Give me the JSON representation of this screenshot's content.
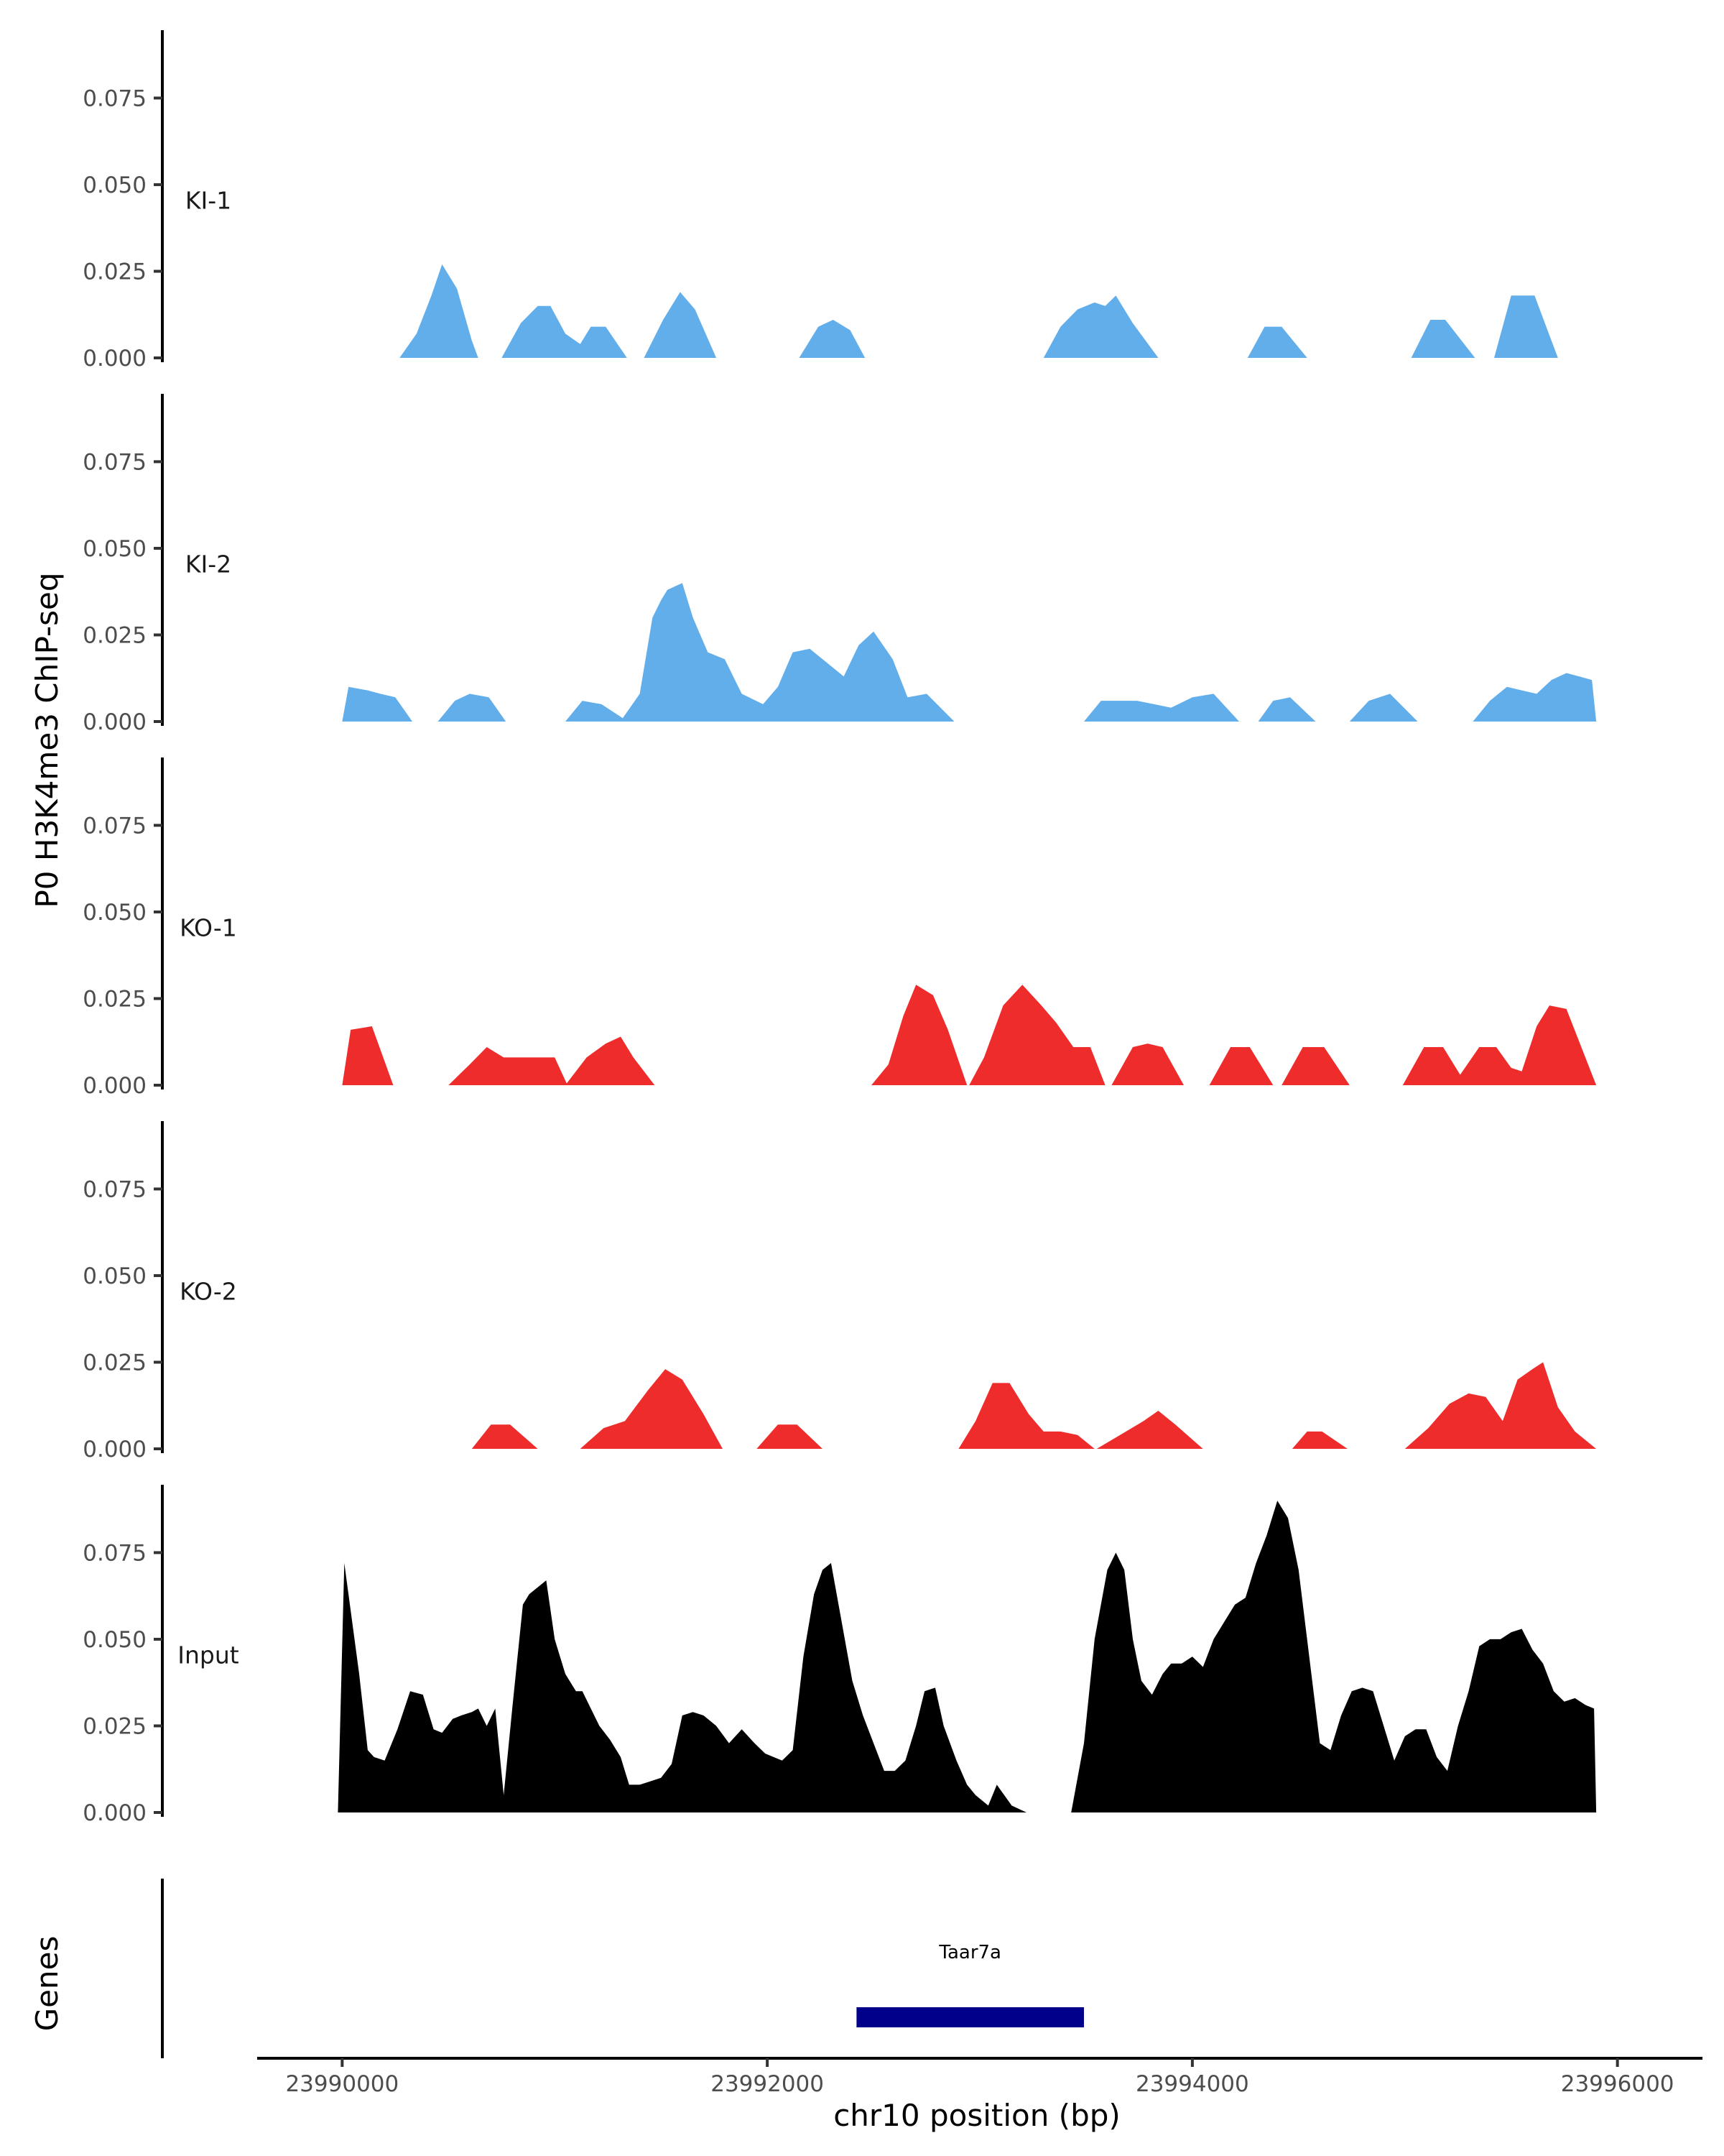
{
  "chart_data": {
    "type": "area",
    "subtype": "genome-track",
    "ylabel": "P0 H3K4me3 ChIP-seq",
    "xlabel": "chr10 position (bp)",
    "xlim": [
      23989600,
      23996400
    ],
    "ylim": [
      0,
      0.095
    ],
    "yticks": [
      0.0,
      0.025,
      0.05,
      0.075
    ],
    "ytick_labels": [
      "0.000",
      "0.025",
      "0.050",
      "0.075"
    ],
    "xticks": [
      23990000,
      23992000,
      23994000,
      23996000
    ],
    "xtick_labels": [
      "23990000",
      "23992000",
      "23994000",
      "23996000"
    ],
    "colors": {
      "KI": "#62aeeb",
      "KO": "#ee2c2c",
      "Input": "#000000",
      "gene": "#00008b"
    },
    "tracks": [
      {
        "name": "KI-1",
        "label": "KI-1",
        "color": "#62aeeb",
        "segments": [
          {
            "x": [
              23990270,
              23990350,
              23990420,
              23990470,
              23990540,
              23990610,
              23990640
            ],
            "y": [
              0,
              0.007,
              0.018,
              0.027,
              0.02,
              0.005,
              0
            ]
          },
          {
            "x": [
              23990750,
              23990840,
              23990920,
              23990980,
              23991050,
              23991120,
              23991170,
              23991240,
              23991340
            ],
            "y": [
              0,
              0.01,
              0.015,
              0.015,
              0.007,
              0.004,
              0.009,
              0.009,
              0
            ]
          },
          {
            "x": [
              23991420,
              23991510,
              23991590,
              23991660,
              23991760
            ],
            "y": [
              0,
              0.011,
              0.019,
              0.014,
              0
            ]
          },
          {
            "x": [
              23992150,
              23992240,
              23992310,
              23992390,
              23992460
            ],
            "y": [
              0,
              0.009,
              0.011,
              0.008,
              0
            ]
          },
          {
            "x": [
              23993300,
              23993380,
              23993460,
              23993540,
              23993590,
              23993640,
              23993720,
              23993840
            ],
            "y": [
              0,
              0.009,
              0.014,
              0.016,
              0.015,
              0.018,
              0.01,
              0
            ]
          },
          {
            "x": [
              23994260,
              23994340,
              23994420,
              23994540
            ],
            "y": [
              0,
              0.009,
              0.009,
              0
            ]
          },
          {
            "x": [
              23995030,
              23995120,
              23995190,
              23995330
            ],
            "y": [
              0,
              0.011,
              0.011,
              0
            ]
          },
          {
            "x": [
              23995420,
              23995500,
              23995610,
              23995720
            ],
            "y": [
              0,
              0.018,
              0.018,
              0
            ]
          }
        ]
      },
      {
        "name": "KI-2",
        "label": "KI-2",
        "color": "#62aeeb",
        "segments": [
          {
            "x": [
              23990000,
              23990030,
              23990120,
              23990180,
              23990250,
              23990330
            ],
            "y": [
              0,
              0.01,
              0.009,
              0.008,
              0.007,
              0
            ]
          },
          {
            "x": [
              23990450,
              23990530,
              23990600,
              23990690,
              23990770
            ],
            "y": [
              0,
              0.006,
              0.008,
              0.007,
              0
            ]
          },
          {
            "x": [
              23991050,
              23991130,
              23991220,
              23991320,
              23991400,
              23991460,
              23991500,
              23991530,
              23991600,
              23991650,
              23991720,
              23991800,
              23991880,
              23991980,
              23992050,
              23992120,
              23992200,
              23992280,
              23992360,
              23992430,
              23992500,
              23992590,
              23992660,
              23992750,
              23992880
            ],
            "y": [
              0,
              0.006,
              0.005,
              0.001,
              0.008,
              0.03,
              0.035,
              0.038,
              0.04,
              0.03,
              0.02,
              0.018,
              0.008,
              0.005,
              0.01,
              0.02,
              0.021,
              0.017,
              0.013,
              0.022,
              0.026,
              0.018,
              0.007,
              0.008,
              0
            ]
          },
          {
            "x": [
              23993490,
              23993570,
              23993660,
              23993740,
              23993820,
              23993900,
              23994000,
              23994100,
              23994220
            ],
            "y": [
              0,
              0.006,
              0.006,
              0.006,
              0.005,
              0.004,
              0.007,
              0.008,
              0
            ]
          },
          {
            "x": [
              23994310,
              23994380,
              23994460,
              23994580
            ],
            "y": [
              0,
              0.006,
              0.007,
              0
            ]
          },
          {
            "x": [
              23994740,
              23994830,
              23994930,
              23995060
            ],
            "y": [
              0,
              0.006,
              0.008,
              0
            ]
          },
          {
            "x": [
              23995320,
              23995400,
              23995480,
              23995550,
              23995620,
              23995690,
              23995760,
              23995820,
              23995880,
              23995900
            ],
            "y": [
              0,
              0.006,
              0.01,
              0.009,
              0.008,
              0.012,
              0.014,
              0.013,
              0.012,
              0
            ]
          }
        ]
      },
      {
        "name": "KO-1",
        "label": "KO-1",
        "color": "#ee2c2c",
        "segments": [
          {
            "x": [
              23990000,
              23990040,
              23990140,
              23990240
            ],
            "y": [
              0,
              0.016,
              0.017,
              0
            ]
          },
          {
            "x": [
              23990500,
              23990600,
              23990680,
              23990760,
              23990880,
              23991000,
              23991060
            ],
            "y": [
              0,
              0.006,
              0.011,
              0.008,
              0.008,
              0.008,
              0
            ]
          },
          {
            "x": [
              23991050,
              23991150,
              23991240,
              23991310,
              23991370,
              23991470
            ],
            "y": [
              0,
              0.008,
              0.012,
              0.014,
              0.008,
              0
            ]
          },
          {
            "x": [
              23992490,
              23992570,
              23992640,
              23992700,
              23992780,
              23992850,
              23992940
            ],
            "y": [
              0,
              0.006,
              0.02,
              0.029,
              0.026,
              0.016,
              0
            ]
          },
          {
            "x": [
              23992950,
              23993020,
              23993110,
              23993200,
              23993290,
              23993360,
              23993440,
              23993520,
              23993590
            ],
            "y": [
              0,
              0.008,
              0.023,
              0.029,
              0.023,
              0.018,
              0.011,
              0.011,
              0
            ]
          },
          {
            "x": [
              23993620,
              23993720,
              23993790,
              23993860,
              23993960
            ],
            "y": [
              0,
              0.011,
              0.012,
              0.011,
              0
            ]
          },
          {
            "x": [
              23994080,
              23994180,
              23994270,
              23994380
            ],
            "y": [
              0,
              0.011,
              0.011,
              0
            ]
          },
          {
            "x": [
              23994420,
              23994520,
              23994620,
              23994740
            ],
            "y": [
              0,
              0.011,
              0.011,
              0
            ]
          },
          {
            "x": [
              23994990,
              23995090,
              23995180,
              23995260,
              23995350,
              23995430,
              23995500,
              23995550
            ],
            "y": [
              0,
              0.011,
              0.011,
              0.003,
              0.011,
              0.011,
              0.005,
              0.004
            ]
          },
          {
            "x": [
              23995550,
              23995620,
              23995680,
              23995760,
              23995900
            ],
            "y": [
              0.004,
              0.017,
              0.023,
              0.022,
              0
            ]
          }
        ]
      },
      {
        "name": "KO-2",
        "label": "KO-2",
        "color": "#ee2c2c",
        "segments": [
          {
            "x": [
              23990610,
              23990700,
              23990790,
              23990920
            ],
            "y": [
              0,
              0.007,
              0.007,
              0
            ]
          },
          {
            "x": [
              23991120,
              23991230,
              23991330,
              23991440,
              23991520,
              23991600,
              23991700,
              23991790
            ],
            "y": [
              0,
              0.006,
              0.008,
              0.017,
              0.023,
              0.02,
              0.01,
              0
            ]
          },
          {
            "x": [
              23991950,
              23992050,
              23992140,
              23992260
            ],
            "y": [
              0,
              0.007,
              0.007,
              0
            ]
          },
          {
            "x": [
              23992900,
              23992980,
              23993060,
              23993140,
              23993230,
              23993300,
              23993380,
              23993460,
              23993540
            ],
            "y": [
              0,
              0.008,
              0.019,
              0.019,
              0.01,
              0.005,
              0.005,
              0.004,
              0
            ]
          },
          {
            "x": [
              23993550,
              23993660,
              23993770,
              23993840,
              23993920,
              23994050
            ],
            "y": [
              0,
              0.004,
              0.008,
              0.011,
              0.007,
              0
            ]
          },
          {
            "x": [
              23994470,
              23994540,
              23994610,
              23994730
            ],
            "y": [
              0,
              0.005,
              0.005,
              0
            ]
          },
          {
            "x": [
              23995000,
              23995110,
              23995210,
              23995300,
              23995380,
              23995460,
              23995530,
              23995600,
              23995650,
              23995720,
              23995800,
              23995900
            ],
            "y": [
              0,
              0.006,
              0.013,
              0.016,
              0.015,
              0.008,
              0.02,
              0.023,
              0.025,
              0.012,
              0.005,
              0
            ]
          }
        ]
      },
      {
        "name": "Input",
        "label": "Input",
        "color": "#000000",
        "segments": [
          {
            "x": [
              23989980,
              23990010,
              23990080,
              23990120,
              23990150,
              23990200,
              23990260,
              23990320,
              23990380,
              23990430,
              23990470,
              23990520,
              23990560,
              23990610,
              23990640,
              23990680,
              23990720,
              23990760,
              23990800,
              23990850,
              23990880,
              23990920,
              23990960,
              23991000,
              23991050,
              23991100,
              23991130,
              23991170,
              23991210,
              23991260,
              23991310,
              23991350,
              23991400,
              23991450,
              23991500,
              23991550,
              23991600,
              23991650,
              23991700,
              23991760,
              23991820,
              23991880,
              23991940,
              23991990,
              23992030,
              23992070,
              23992120,
              23992170,
              23992220,
              23992260,
              23992300,
              23992350,
              23992400,
              23992450,
              23992500,
              23992550,
              23992600,
              23992650,
              23992700,
              23992740,
              23992790,
              23992830,
              23992890,
              23992940,
              23992980,
              23993040,
              23993080,
              23993150,
              23993220
            ],
            "y": [
              0,
              0.072,
              0.04,
              0.018,
              0.016,
              0.015,
              0.024,
              0.035,
              0.034,
              0.024,
              0.023,
              0.027,
              0.028,
              0.029,
              0.03,
              0.025,
              0.03,
              0.005,
              0.03,
              0.06,
              0.063,
              0.065,
              0.067,
              0.05,
              0.04,
              0.035,
              0.035,
              0.03,
              0.025,
              0.021,
              0.016,
              0.008,
              0.008,
              0.009,
              0.01,
              0.014,
              0.028,
              0.029,
              0.028,
              0.025,
              0.02,
              0.024,
              0.02,
              0.017,
              0.016,
              0.015,
              0.018,
              0.045,
              0.063,
              0.07,
              0.072,
              0.055,
              0.038,
              0.028,
              0.02,
              0.012,
              0.012,
              0.015,
              0.025,
              0.035,
              0.036,
              0.025,
              0.015,
              0.008,
              0.005,
              0.002,
              0.008,
              0.002,
              0
            ]
          },
          {
            "x": [
              23993430,
              23993490,
              23993540,
              23993600,
              23993640,
              23993680,
              23993720,
              23993760,
              23993810,
              23993860,
              23993900,
              23993950,
              23994000,
              23994050,
              23994100,
              23994150,
              23994200,
              23994250,
              23994300,
              23994350,
              23994400,
              23994450,
              23994500,
              23994550,
              23994600,
              23994650,
              23994700,
              23994750,
              23994800,
              23994850,
              23994900,
              23994950,
              23995000,
              23995050,
              23995100,
              23995150,
              23995200,
              23995250,
              23995300,
              23995350,
              23995400,
              23995450,
              23995500,
              23995550,
              23995600,
              23995650,
              23995700,
              23995750,
              23995800,
              23995850,
              23995890,
              23995900
            ],
            "y": [
              0,
              0.02,
              0.05,
              0.07,
              0.075,
              0.07,
              0.05,
              0.038,
              0.034,
              0.04,
              0.043,
              0.043,
              0.045,
              0.042,
              0.05,
              0.055,
              0.06,
              0.062,
              0.072,
              0.08,
              0.09,
              0.085,
              0.07,
              0.045,
              0.02,
              0.018,
              0.028,
              0.035,
              0.036,
              0.035,
              0.025,
              0.015,
              0.022,
              0.024,
              0.024,
              0.016,
              0.012,
              0.025,
              0.035,
              0.048,
              0.05,
              0.05,
              0.052,
              0.053,
              0.047,
              0.043,
              0.035,
              0.032,
              0.033,
              0.031,
              0.03,
              0
            ]
          }
        ]
      }
    ],
    "genes": {
      "title": "Genes",
      "items": [
        {
          "name": "Taar7a",
          "start": 23992420,
          "end": 23993490
        }
      ]
    }
  }
}
